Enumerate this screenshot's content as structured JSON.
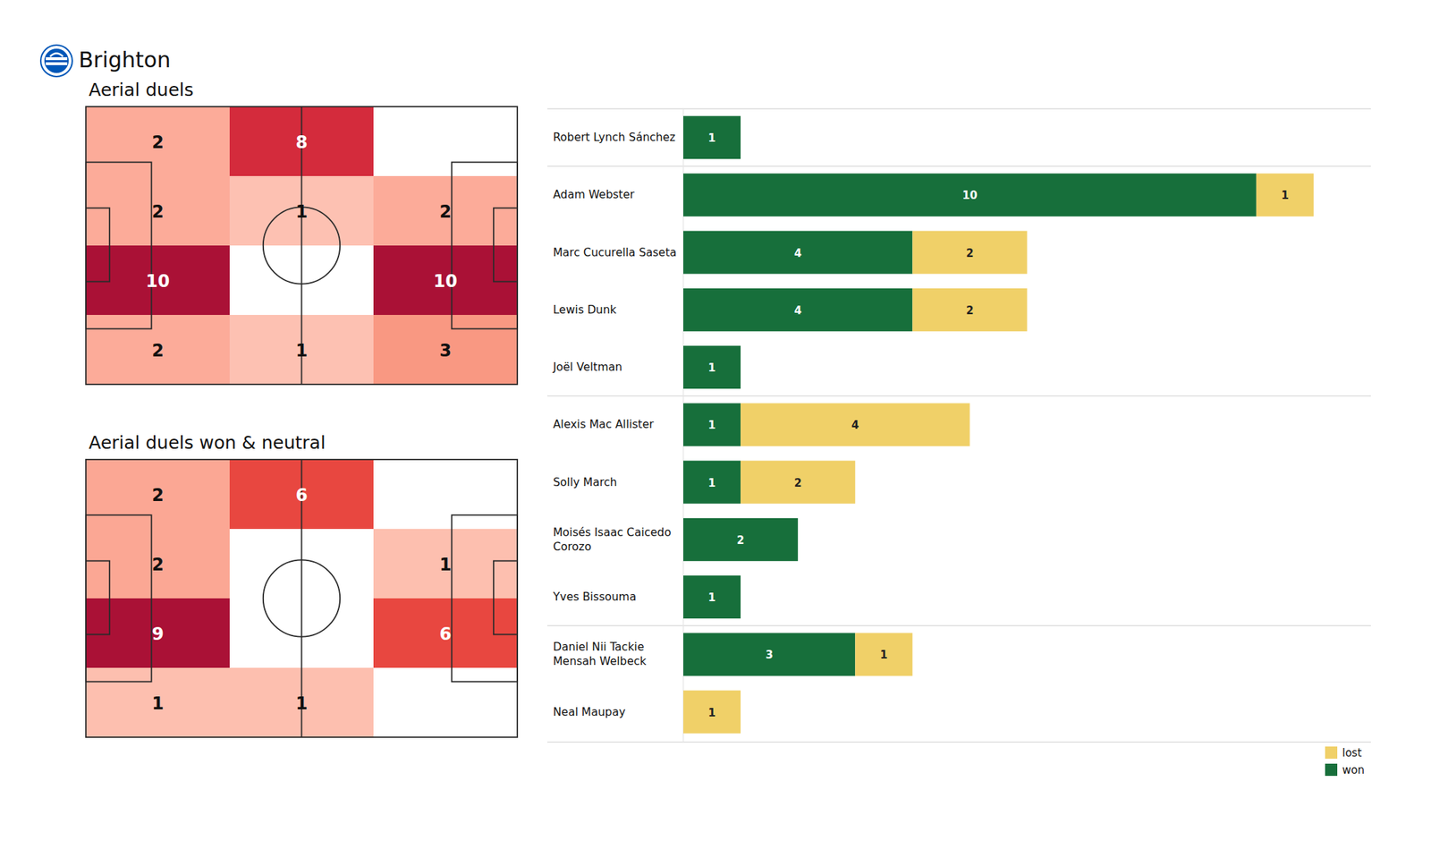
{
  "header": {
    "title": "Brighton"
  },
  "chart_data": [
    {
      "type": "heatmap",
      "title": "Aerial duels",
      "cells": [
        [
          2,
          8,
          null
        ],
        [
          2,
          1,
          2
        ],
        [
          10,
          null,
          10
        ],
        [
          2,
          1,
          3
        ]
      ],
      "data_labels": true,
      "tick_labels": false
    },
    {
      "type": "heatmap",
      "title": "Aerial duels won & neutral",
      "cells": [
        [
          2,
          6,
          null
        ],
        [
          2,
          null,
          1
        ],
        [
          9,
          null,
          6
        ],
        [
          1,
          1,
          null
        ]
      ],
      "data_labels": true,
      "tick_labels": false
    },
    {
      "type": "bar",
      "orientation": "horizontal",
      "stacked": true,
      "categories": [
        "Robert Lynch Sánchez",
        "Adam Webster",
        "Marc Cucurella Saseta",
        "Lewis Dunk",
        "Joël Veltman",
        "Alexis Mac Allister",
        "Solly March",
        "Moisés Isaac Caicedo Corozo",
        "Yves Bissouma",
        "Daniel Nii Tackie Mensah Welbeck",
        "Neal Maupay"
      ],
      "series": [
        {
          "name": "won",
          "color": "#176f3b",
          "values": [
            1,
            10,
            4,
            4,
            1,
            1,
            1,
            2,
            1,
            3,
            0
          ]
        },
        {
          "name": "lost",
          "color": "#f0d068",
          "values": [
            0,
            1,
            2,
            2,
            0,
            4,
            2,
            0,
            0,
            1,
            1
          ]
        }
      ],
      "xlim": [
        0,
        12
      ],
      "data_labels": true,
      "tick_labels": "y",
      "legend": "lower right"
    }
  ]
}
